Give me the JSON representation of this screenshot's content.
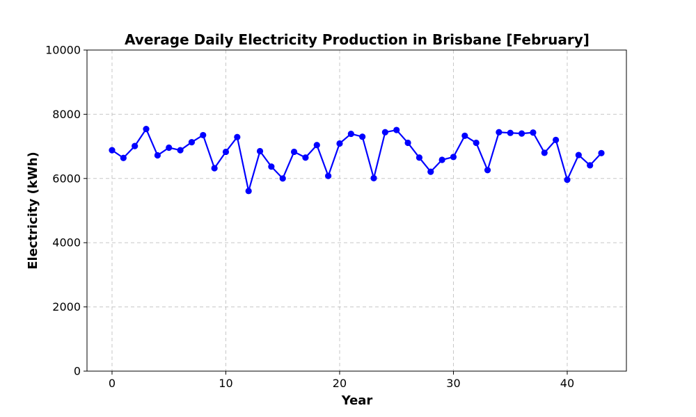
{
  "chart_data": {
    "type": "line",
    "title": "Average Daily Electricity Production in Brisbane [February]",
    "xlabel": "Year",
    "ylabel": "Electricity (kWh)",
    "xlim": [
      -2.2,
      45.2
    ],
    "ylim": [
      0,
      10000
    ],
    "xticks": [
      0,
      10,
      20,
      30,
      40
    ],
    "yticks": [
      0,
      2000,
      4000,
      6000,
      8000,
      10000
    ],
    "grid": true,
    "series": [
      {
        "color": "#0000ff",
        "marker": "circle",
        "x": [
          0,
          1,
          2,
          3,
          4,
          5,
          6,
          7,
          8,
          9,
          10,
          11,
          12,
          13,
          14,
          15,
          16,
          17,
          18,
          19,
          20,
          21,
          22,
          23,
          24,
          25,
          26,
          27,
          28,
          29,
          30,
          31,
          32,
          33,
          34,
          35,
          36,
          37,
          38,
          39,
          40,
          41,
          42,
          43
        ],
        "values": [
          6880,
          6640,
          7010,
          7540,
          6720,
          6960,
          6880,
          7130,
          7350,
          6320,
          6830,
          7290,
          5610,
          6850,
          6370,
          6000,
          6830,
          6650,
          7040,
          6080,
          7090,
          7390,
          7300,
          6010,
          7440,
          7510,
          7110,
          6650,
          6210,
          6580,
          6670,
          7330,
          7110,
          6260,
          7440,
          7420,
          7400,
          7430,
          6800,
          7200,
          5960,
          6730,
          6410,
          6790
        ]
      }
    ]
  }
}
